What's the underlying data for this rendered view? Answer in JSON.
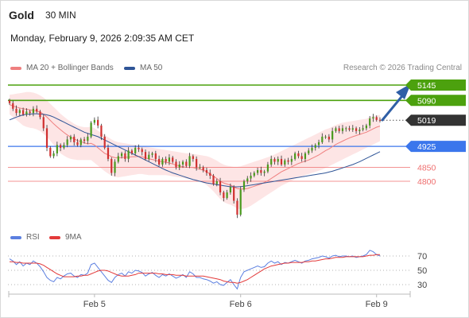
{
  "header": {
    "title": "Gold",
    "timeframe": "30 MIN",
    "datetime": "Monday, February 9, 2026 2:09:35 AM CET"
  },
  "legend": {
    "ma20": "MA 20 + Bollinger Bands",
    "ma50": "MA 50",
    "source": "Research © 2026 Trading Central",
    "rsi": "RSI",
    "rsi_ma": "9MA"
  },
  "colors": {
    "ma20": "#ef7f7f",
    "band_fill": "#fde0e0",
    "ma50": "#2f5597",
    "resistance": "#4ca10e",
    "pivot": "#3b76ec",
    "support": "#ef6f6f",
    "last": "#333333",
    "arrow": "#2f5fa6",
    "candle_up": "#4a9a1e",
    "candle_down": "#d03030",
    "rsi": "#5b7fe0",
    "rsi_ma": "#e33a3a"
  },
  "chart_data": [
    {
      "type": "candlestick",
      "name": "price",
      "x_tick_labels": [
        "Feb 5",
        "Feb 6",
        "Feb 9"
      ],
      "x_tick_index": [
        25,
        68,
        108
      ],
      "ylim": [
        4620,
        5165
      ],
      "levels": [
        {
          "label": "5145",
          "value": 5145,
          "kind": "resistance"
        },
        {
          "label": "5090",
          "value": 5090,
          "kind": "resistance"
        },
        {
          "label": "5019",
          "value": 5019,
          "kind": "last"
        },
        {
          "label": "4925",
          "value": 4925,
          "kind": "pivot"
        },
        {
          "label": "4850",
          "value": 4850,
          "kind": "support"
        },
        {
          "label": "4800",
          "value": 4800,
          "kind": "support"
        }
      ],
      "close": [
        5080,
        5060,
        5045,
        5055,
        5040,
        5050,
        5045,
        5060,
        5050,
        5030,
        4990,
        4920,
        4890,
        4900,
        4930,
        4920,
        4930,
        4950,
        4960,
        4940,
        4930,
        4950,
        4945,
        4960,
        5010,
        5020,
        5000,
        4960,
        4920,
        4880,
        4830,
        4870,
        4890,
        4900,
        4880,
        4910,
        4900,
        4920,
        4915,
        4905,
        4880,
        4895,
        4900,
        4880,
        4860,
        4880,
        4870,
        4885,
        4870,
        4850,
        4860,
        4870,
        4855,
        4890,
        4880,
        4850,
        4850,
        4840,
        4830,
        4820,
        4790,
        4800,
        4760,
        4740,
        4760,
        4780,
        4730,
        4680,
        4770,
        4800,
        4810,
        4820,
        4830,
        4840,
        4830,
        4835,
        4860,
        4880,
        4870,
        4880,
        4860,
        4875,
        4870,
        4880,
        4900,
        4890,
        4880,
        4900,
        4910,
        4920,
        4930,
        4940,
        4960,
        4960,
        4950,
        4980,
        4990,
        4980,
        4990,
        4990,
        4985,
        4990,
        4980,
        4985,
        4990,
        5000,
        5025,
        5030,
        5020,
        5019
      ],
      "ma20": [
        5075,
        5070,
        5066,
        5063,
        5060,
        5058,
        5056,
        5054,
        5052,
        5048,
        5040,
        5030,
        5018,
        5006,
        4995,
        4985,
        4975,
        4966,
        4958,
        4952,
        4946,
        4942,
        4938,
        4934,
        4936,
        4930,
        4920,
        4910,
        4900,
        4895,
        4888,
        4885,
        4884,
        4885,
        4886,
        4886,
        4888,
        4888,
        4889,
        4888,
        4884,
        4880,
        4878,
        4875,
        4872,
        4870,
        4868,
        4866,
        4862,
        4858,
        4855,
        4852,
        4850,
        4850,
        4849,
        4846,
        4843,
        4840,
        4834,
        4826,
        4818,
        4810,
        4800,
        4794,
        4790,
        4786,
        4780,
        4774,
        4772,
        4772,
        4774,
        4778,
        4782,
        4786,
        4790,
        4796,
        4802,
        4810,
        4818,
        4826,
        4834,
        4840,
        4846,
        4852,
        4858,
        4864,
        4868,
        4872,
        4876,
        4882,
        4888,
        4894,
        4902,
        4910,
        4916,
        4924,
        4932,
        4938,
        4944,
        4950,
        4955,
        4960,
        4964,
        4968,
        4972,
        4976,
        4982,
        4988,
        4994,
        4998
      ],
      "band_upper": [
        5110,
        5112,
        5114,
        5116,
        5118,
        5120,
        5120,
        5118,
        5114,
        5108,
        5100,
        5090,
        5078,
        5066,
        5054,
        5042,
        5032,
        5022,
        5014,
        5006,
        5000,
        4996,
        4994,
        4994,
        4996,
        4990,
        4982,
        4974,
        4966,
        4958,
        4950,
        4944,
        4940,
        4938,
        4936,
        4934,
        4932,
        4930,
        4928,
        4926,
        4924,
        4922,
        4920,
        4918,
        4916,
        4914,
        4912,
        4910,
        4908,
        4906,
        4904,
        4902,
        4900,
        4900,
        4898,
        4896,
        4894,
        4892,
        4890,
        4886,
        4880,
        4874,
        4866,
        4860,
        4856,
        4854,
        4852,
        4852,
        4854,
        4858,
        4862,
        4866,
        4870,
        4874,
        4878,
        4882,
        4886,
        4890,
        4896,
        4902,
        4908,
        4914,
        4920,
        4926,
        4932,
        4938,
        4944,
        4950,
        4956,
        4962,
        4968,
        4974,
        4980,
        4986,
        4990,
        4996,
        5002,
        5006,
        5010,
        5012,
        5014,
        5016,
        5018,
        5020,
        5022,
        5024,
        5030,
        5034,
        5036,
        5038
      ],
      "band_lower": [
        5040,
        5030,
        5020,
        5010,
        5000,
        4995,
        4992,
        4990,
        4986,
        4980,
        4970,
        4960,
        4945,
        4930,
        4915,
        4900,
        4892,
        4885,
        4880,
        4878,
        4876,
        4876,
        4876,
        4876,
        4876,
        4866,
        4856,
        4846,
        4836,
        4828,
        4820,
        4816,
        4814,
        4816,
        4818,
        4820,
        4822,
        4824,
        4826,
        4826,
        4824,
        4822,
        4822,
        4822,
        4822,
        4822,
        4822,
        4820,
        4818,
        4816,
        4814,
        4812,
        4810,
        4808,
        4806,
        4802,
        4798,
        4794,
        4786,
        4776,
        4764,
        4750,
        4736,
        4726,
        4720,
        4716,
        4710,
        4702,
        4700,
        4702,
        4706,
        4712,
        4720,
        4728,
        4736,
        4744,
        4752,
        4760,
        4768,
        4776,
        4784,
        4790,
        4796,
        4802,
        4808,
        4814,
        4818,
        4822,
        4826,
        4830,
        4834,
        4838,
        4842,
        4848,
        4854,
        4860,
        4866,
        4872,
        4878,
        4884,
        4890,
        4896,
        4902,
        4908,
        4914,
        4920,
        4926,
        4932,
        4938,
        4944
      ],
      "ma50": [
        5020,
        5025,
        5030,
        5034,
        5038,
        5040,
        5041,
        5042,
        5042,
        5041,
        5040,
        5038,
        5035,
        5030,
        5024,
        5018,
        5012,
        5006,
        5000,
        4994,
        4988,
        4982,
        4976,
        4972,
        4968,
        4964,
        4960,
        4954,
        4948,
        4942,
        4936,
        4930,
        4924,
        4918,
        4912,
        4906,
        4900,
        4894,
        4888,
        4882,
        4876,
        4870,
        4864,
        4858,
        4852,
        4846,
        4840,
        4835,
        4830,
        4826,
        4822,
        4818,
        4814,
        4810,
        4806,
        4803,
        4800,
        4797,
        4794,
        4792,
        4790,
        4788,
        4786,
        4784,
        4782,
        4780,
        4780,
        4780,
        4781,
        4782,
        4784,
        4786,
        4788,
        4790,
        4792,
        4794,
        4796,
        4798,
        4800,
        4802,
        4804,
        4806,
        4808,
        4810,
        4812,
        4814,
        4816,
        4818,
        4820,
        4822,
        4824,
        4826,
        4828,
        4830,
        4833,
        4836,
        4840,
        4844,
        4848,
        4852,
        4856,
        4860,
        4865,
        4870,
        4876,
        4882,
        4888,
        4894,
        4900,
        4906
      ]
    },
    {
      "type": "line",
      "name": "rsi",
      "y_tick_labels": [
        "70",
        "50",
        "30"
      ],
      "y_ticks": [
        70,
        50,
        30
      ],
      "ylim": [
        15,
        90
      ],
      "rsi": [
        66,
        63,
        58,
        62,
        56,
        60,
        58,
        63,
        60,
        55,
        48,
        40,
        36,
        34,
        40,
        38,
        42,
        45,
        46,
        42,
        40,
        44,
        43,
        46,
        58,
        60,
        54,
        48,
        42,
        36,
        33,
        40,
        44,
        46,
        42,
        48,
        46,
        50,
        49,
        47,
        42,
        45,
        47,
        43,
        40,
        44,
        42,
        45,
        42,
        39,
        41,
        44,
        40,
        48,
        45,
        40,
        40,
        38,
        37,
        35,
        32,
        34,
        30,
        29,
        33,
        37,
        30,
        24,
        40,
        48,
        50,
        52,
        54,
        56,
        54,
        55,
        60,
        63,
        60,
        62,
        58,
        61,
        60,
        62,
        64,
        62,
        60,
        63,
        64,
        66,
        67,
        68,
        70,
        69,
        67,
        70,
        71,
        69,
        70,
        70,
        69,
        70,
        68,
        69,
        70,
        72,
        78,
        76,
        72,
        70
      ],
      "rsi_ma": [
        62,
        62,
        61,
        61,
        60,
        60,
        60,
        60,
        60,
        59,
        57,
        54,
        51,
        48,
        45,
        43,
        41,
        41,
        41,
        41,
        42,
        42,
        43,
        43,
        45,
        47,
        49,
        50,
        50,
        49,
        47,
        45,
        43,
        42,
        42,
        42,
        43,
        44,
        46,
        46,
        46,
        46,
        46,
        46,
        45,
        45,
        44,
        44,
        44,
        43,
        43,
        43,
        42,
        42,
        42,
        42,
        42,
        42,
        41,
        40,
        39,
        38,
        37,
        35,
        34,
        33,
        33,
        32,
        33,
        35,
        37,
        40,
        43,
        46,
        49,
        52,
        54,
        56,
        57,
        58,
        59,
        60,
        60,
        61,
        61,
        61,
        61,
        62,
        62,
        63,
        63,
        64,
        65,
        66,
        66,
        67,
        68,
        68,
        68,
        69,
        69,
        69,
        69,
        69,
        69,
        70,
        71,
        71,
        72,
        72
      ]
    }
  ]
}
